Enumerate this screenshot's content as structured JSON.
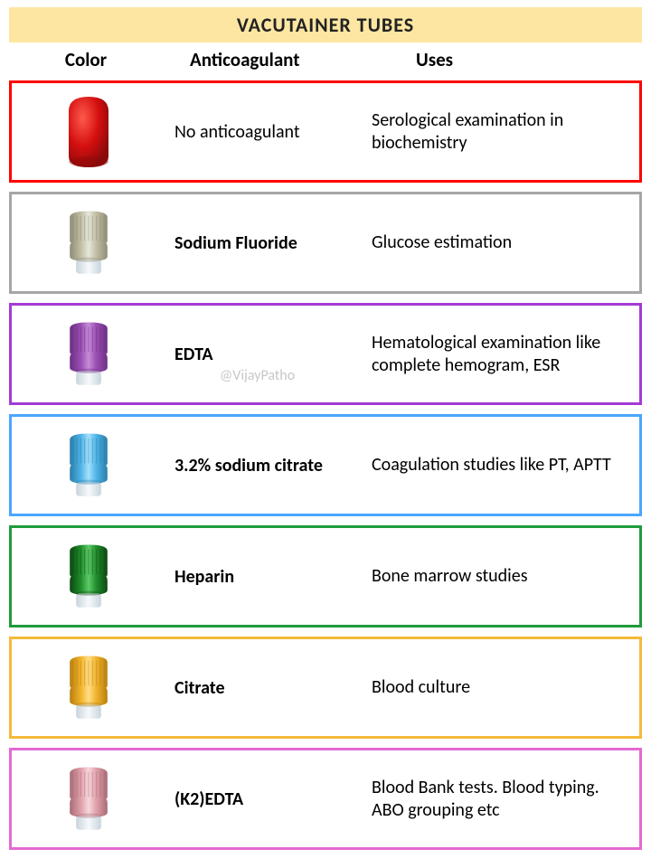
{
  "title": "VACUTAINER TUBES",
  "title_bg": "#fce6a2",
  "title_color": "#222222",
  "headers": {
    "color": "Color",
    "anticoag": "Anticoagulant",
    "uses": "Uses"
  },
  "watermark": "@VijayPatho",
  "rows": [
    {
      "border_color": "#ff0000",
      "cap": {
        "body": "#d40f0f",
        "highlight": "#ff5a4c",
        "shadow": "#8a0a0a",
        "shape": "dome"
      },
      "anticoag": "No anticoagulant",
      "anticoag_bold": false,
      "uses": "Serological examination in biochemistry"
    },
    {
      "border_color": "#a6a6a6",
      "cap": {
        "body": "#c2bfa5",
        "highlight": "#e7e6d9",
        "shadow": "#8f8c77",
        "shape": "ribbed"
      },
      "anticoag": "Sodium Fluoride",
      "anticoag_bold": true,
      "uses": "Glucose estimation"
    },
    {
      "border_color": "#a33bd4",
      "cap": {
        "body": "#9a4fb2",
        "highlight": "#c58dd8",
        "shadow": "#6c2f84",
        "shape": "ribbed"
      },
      "anticoag": "EDTA",
      "anticoag_bold": true,
      "uses": "Hematological examination like complete hemogram, ESR",
      "watermark": true
    },
    {
      "border_color": "#4aa6ff",
      "cap": {
        "body": "#4fb5e8",
        "highlight": "#a5e0fb",
        "shadow": "#2a7da8",
        "shape": "ribbed"
      },
      "anticoag": "3.2% sodium citrate",
      "anticoag_bold": true,
      "uses": "Coagulation studies like PT, APTT"
    },
    {
      "border_color": "#1f9c3b",
      "cap": {
        "body": "#1f8f2b",
        "highlight": "#5fc968",
        "shadow": "#0d4812",
        "shape": "ribbed"
      },
      "anticoag": "Heparin",
      "anticoag_bold": true,
      "uses": "Bone marrow studies"
    },
    {
      "border_color": "#f5b93a",
      "cap": {
        "body": "#f2b42c",
        "highlight": "#ffdd88",
        "shadow": "#b87f0f",
        "shape": "ribbed"
      },
      "anticoag": "Citrate",
      "anticoag_bold": true,
      "uses": "Blood culture"
    },
    {
      "border_color": "#e36ad1",
      "cap": {
        "body": "#e1a1ab",
        "highlight": "#f7d7dc",
        "shadow": "#a86b75",
        "shape": "ribbed"
      },
      "anticoag": "(K2)EDTA",
      "anticoag_bold": true,
      "uses": "Blood Bank tests. Blood typing. ABO grouping etc"
    }
  ]
}
